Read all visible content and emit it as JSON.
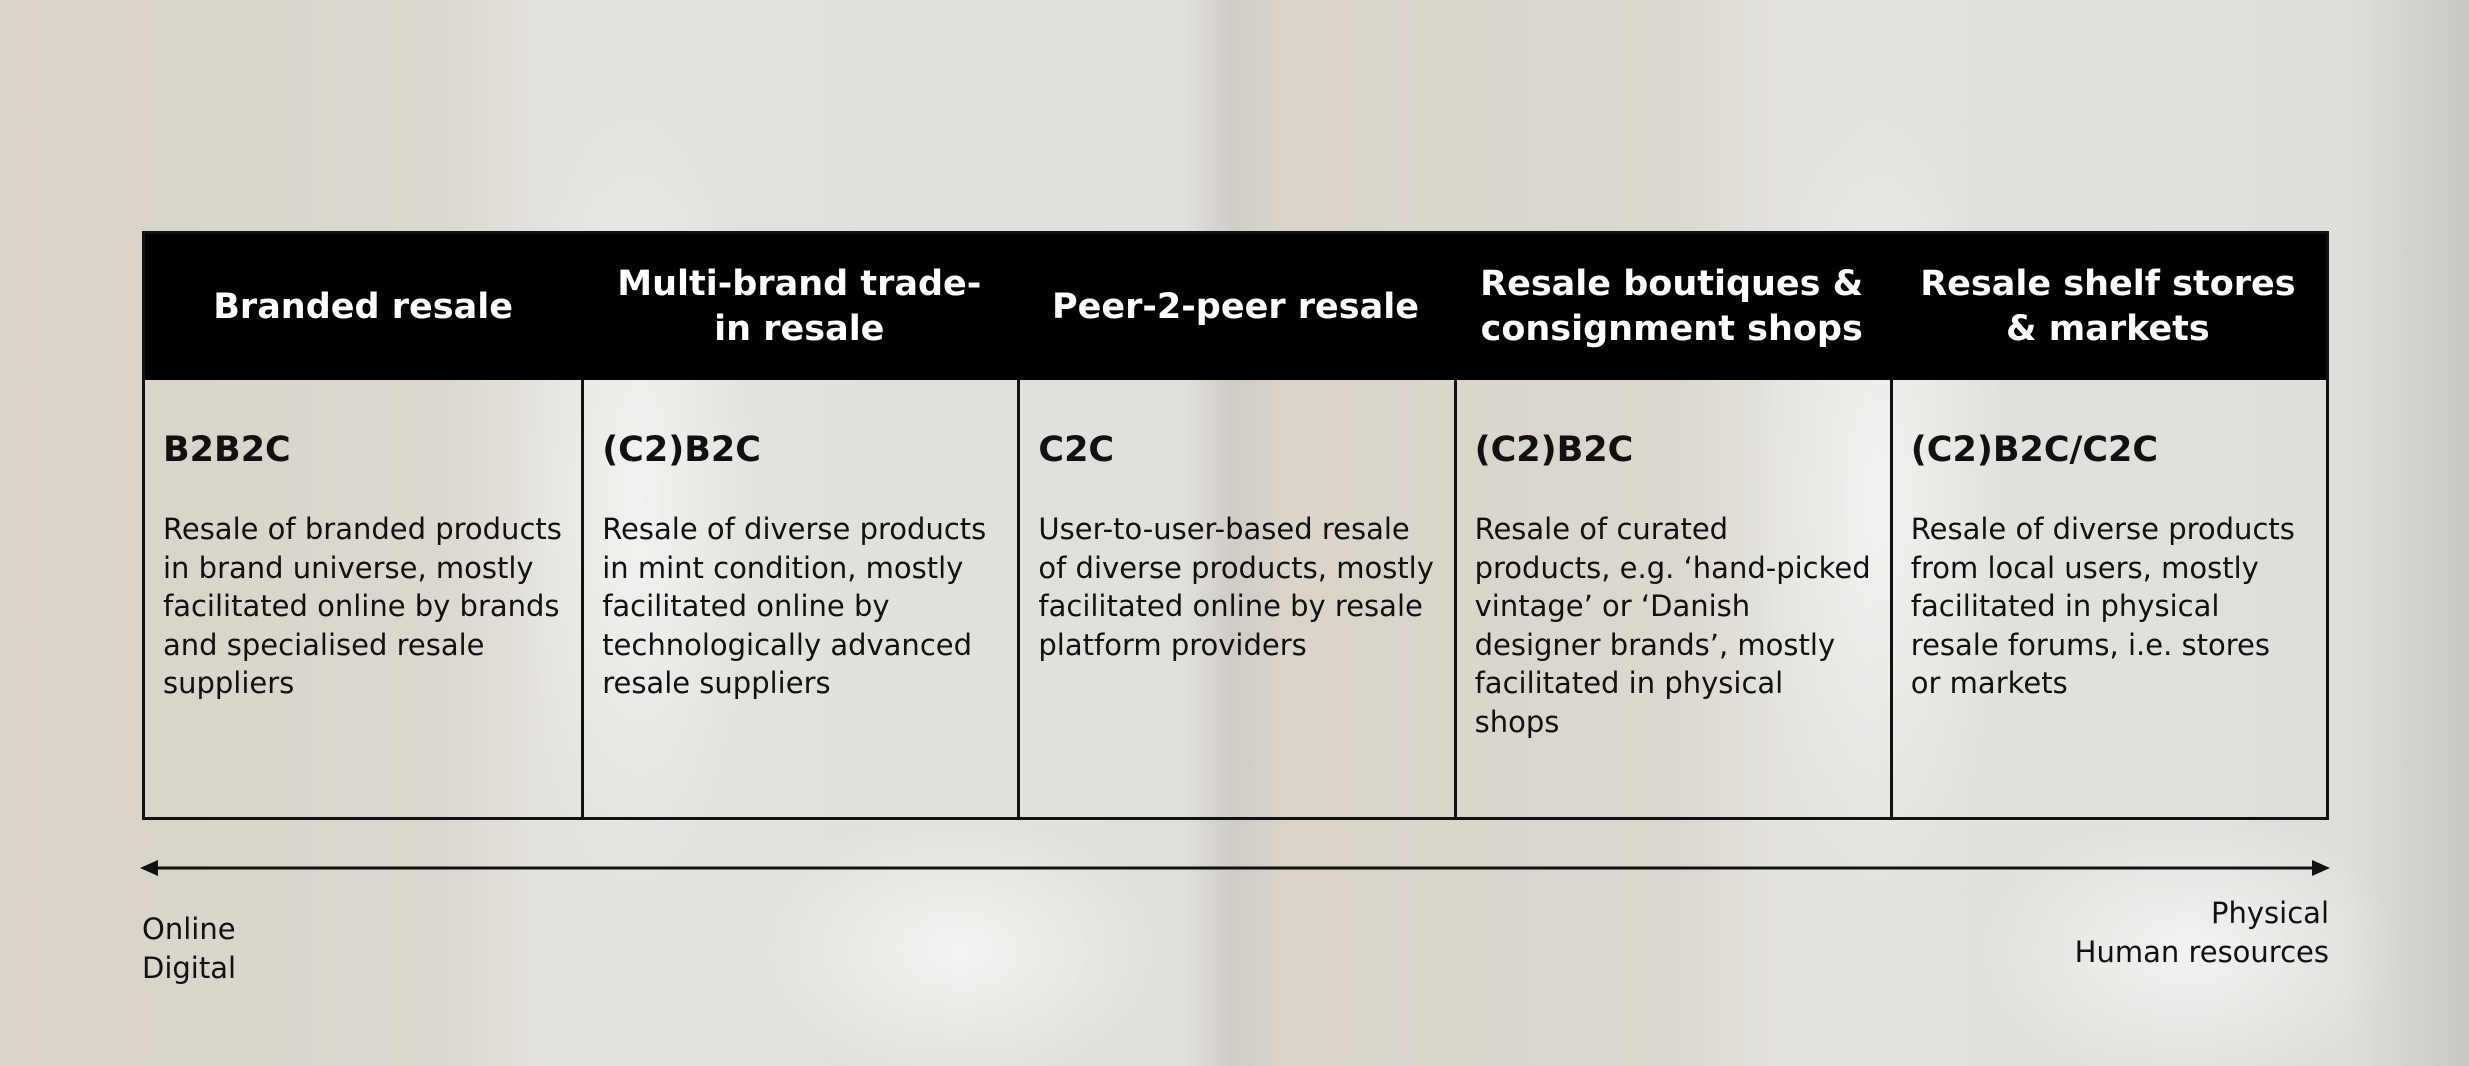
{
  "columns": [
    {
      "header": "Branded resale",
      "code": "B2B2C",
      "description": "Resale of branded products in brand universe, mostly facilitated online by brands and specialised resale suppliers"
    },
    {
      "header": "Multi-brand trade-in resale",
      "code": "(C2)B2C",
      "description": "Resale of diverse products in mint condition, mostly facilitated online by technologically advanced resale suppliers"
    },
    {
      "header": "Peer-2-peer resale",
      "code": "C2C",
      "description": "User-to-user-based resale of diverse products, mostly facilitated online by resale platform providers"
    },
    {
      "header": "Resale boutiques & consignment shops",
      "code": "(C2)B2C",
      "description": "Resale of curated products, e.g. ‘hand-picked vintage’ or ‘Danish designer brands’, mostly facilitated in physical shops"
    },
    {
      "header": "Resale shelf stores & markets",
      "code": "(C2)B2C/C2C",
      "description": "Resale of diverse products from local users, mostly facilitated in physical resale forums, i.e. stores or markets"
    }
  ],
  "axis": {
    "left": [
      "Online",
      "Digital"
    ],
    "right": [
      "Physical",
      "Human resources"
    ]
  }
}
